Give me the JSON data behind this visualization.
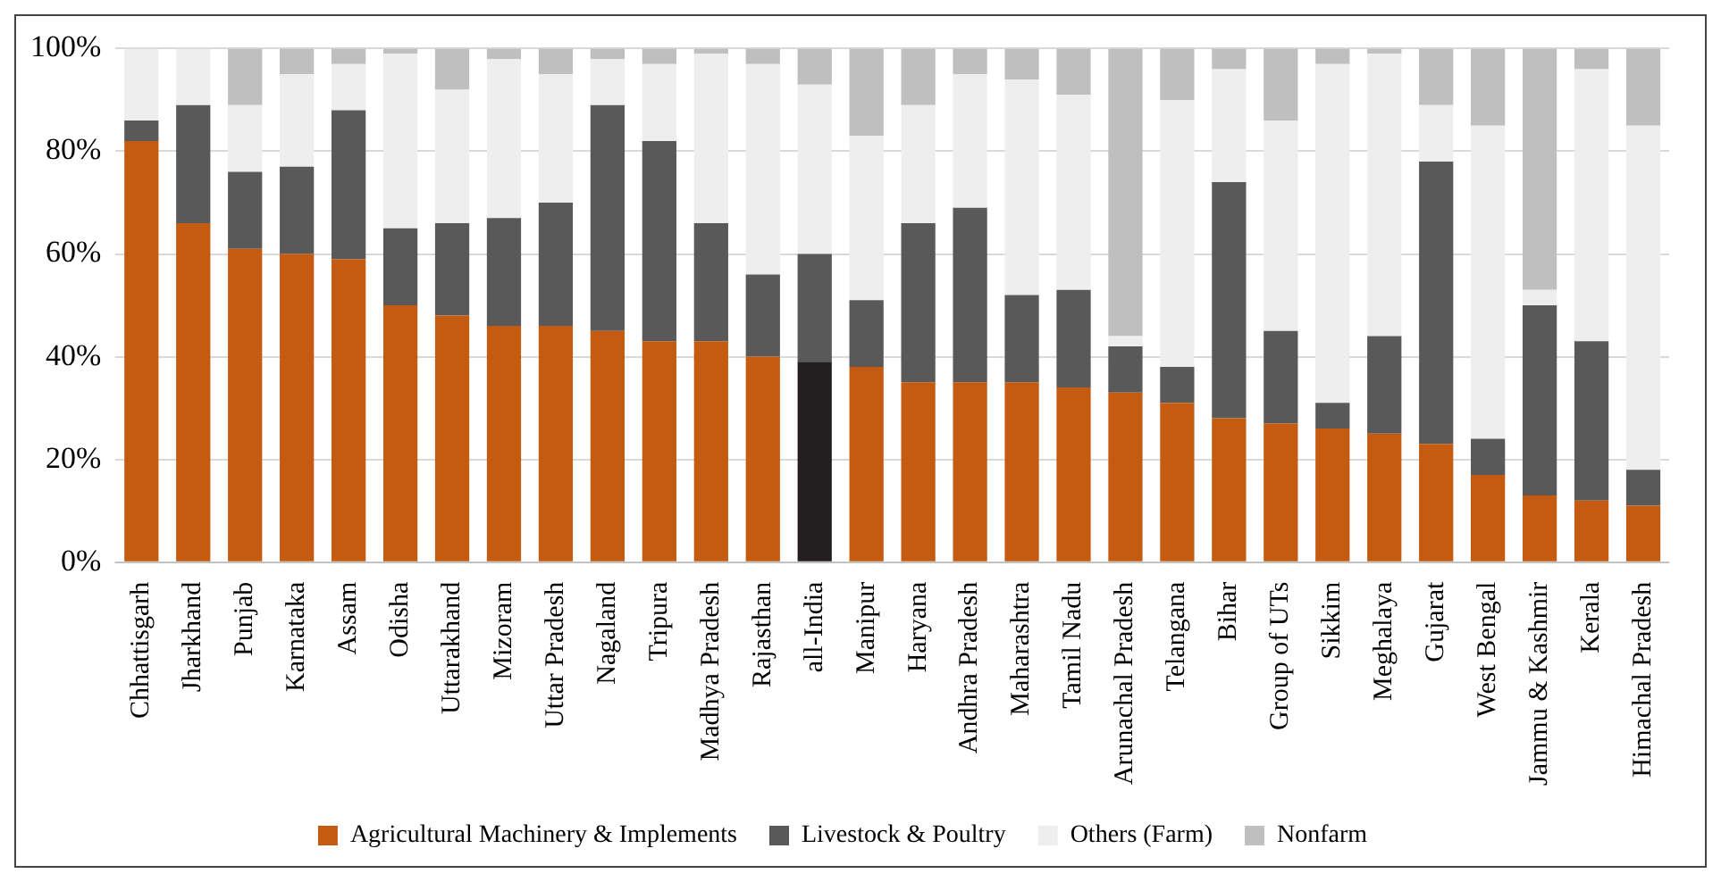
{
  "chart_data": {
    "type": "bar",
    "stacked": true,
    "categories": [
      "Chhattisgarh",
      "Jharkhand",
      "Punjab",
      "Karnataka",
      "Assam",
      "Odisha",
      "Uttarakhand",
      "Mizoram",
      "Uttar Pradesh",
      "Nagaland",
      "Tripura",
      "Madhya Pradesh",
      "Rajasthan",
      "all-India",
      "Manipur",
      "Haryana",
      "Andhra Pradesh",
      "Maharashtra",
      "Tamil Nadu",
      "Arunachal Pradesh",
      "Telangana",
      "Bihar",
      "Group of UTs",
      "Sikkim",
      "Meghalaya",
      "Gujarat",
      "West Bengal",
      "Jammu & Kashmir",
      "Kerala",
      "Himachal Pradesh"
    ],
    "series": [
      {
        "name": "Agricultural Machinery & Implements",
        "color": "#c55a11",
        "colors": [
          "#c55a11",
          "#c55a11",
          "#c55a11",
          "#c55a11",
          "#c55a11",
          "#c55a11",
          "#c55a11",
          "#c55a11",
          "#c55a11",
          "#c55a11",
          "#c55a11",
          "#c55a11",
          "#c55a11",
          "#231f20",
          "#c55a11",
          "#c55a11",
          "#c55a11",
          "#c55a11",
          "#c55a11",
          "#c55a11",
          "#c55a11",
          "#c55a11",
          "#c55a11",
          "#c55a11",
          "#c55a11",
          "#c55a11",
          "#c55a11",
          "#c55a11",
          "#c55a11",
          "#c55a11"
        ],
        "values": [
          82,
          66,
          61,
          60,
          59,
          50,
          48,
          46,
          46,
          45,
          43,
          43,
          40,
          39,
          38,
          35,
          35,
          35,
          34,
          33,
          31,
          28,
          27,
          26,
          25,
          23,
          17,
          13,
          12,
          11
        ]
      },
      {
        "name": "Livestock & Poultry",
        "color": "#595959",
        "values": [
          4,
          23,
          15,
          17,
          29,
          15,
          18,
          21,
          24,
          44,
          39,
          23,
          16,
          21,
          13,
          31,
          34,
          17,
          19,
          9,
          7,
          46,
          18,
          5,
          19,
          55,
          7,
          37,
          31,
          7
        ]
      },
      {
        "name": "Others (Farm)",
        "color": "#eeeeee",
        "values": [
          14,
          11,
          13,
          18,
          9,
          34,
          26,
          31,
          25,
          9,
          15,
          33,
          41,
          33,
          32,
          23,
          26,
          42,
          38,
          2,
          52,
          22,
          41,
          66,
          55,
          11,
          61,
          3,
          53,
          67
        ]
      },
      {
        "name": "Nonfarm",
        "color": "#bfbfbf",
        "values": [
          0,
          0,
          11,
          5,
          3,
          1,
          8,
          2,
          5,
          2,
          3,
          1,
          3,
          7,
          17,
          11,
          5,
          6,
          9,
          56,
          10,
          4,
          14,
          3,
          1,
          11,
          15,
          47,
          4,
          15
        ]
      }
    ],
    "ylim": [
      0,
      100
    ],
    "yticks": [
      {
        "value": 0,
        "label": "0%"
      },
      {
        "value": 20,
        "label": "20%"
      },
      {
        "value": 40,
        "label": "40%"
      },
      {
        "value": 60,
        "label": "60%"
      },
      {
        "value": 80,
        "label": "80%"
      },
      {
        "value": 100,
        "label": "100%"
      }
    ],
    "grid": "y",
    "legend": "bottom"
  }
}
